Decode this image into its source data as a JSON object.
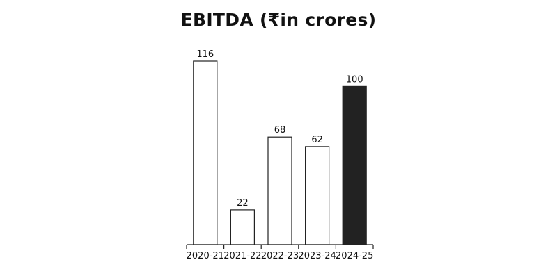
{
  "chart_data": {
    "type": "bar",
    "title": "EBITDA (₹in crores)",
    "categories": [
      "2020-21",
      "2021-22",
      "2022-23",
      "2023-24",
      "2024-25"
    ],
    "values": [
      116,
      22,
      68,
      62,
      100
    ],
    "data_labels": [
      "116",
      "22",
      "68",
      "62",
      "100"
    ],
    "highlighted_category": "2024-25",
    "xlabel": "",
    "ylabel": "",
    "ylim": [
      0,
      116
    ],
    "grid": false,
    "legend": "none",
    "colors": {
      "bar_fill": "#ffffff",
      "bar_stroke": "#222222",
      "highlight_fill": "#222222",
      "text": "#111111"
    }
  }
}
